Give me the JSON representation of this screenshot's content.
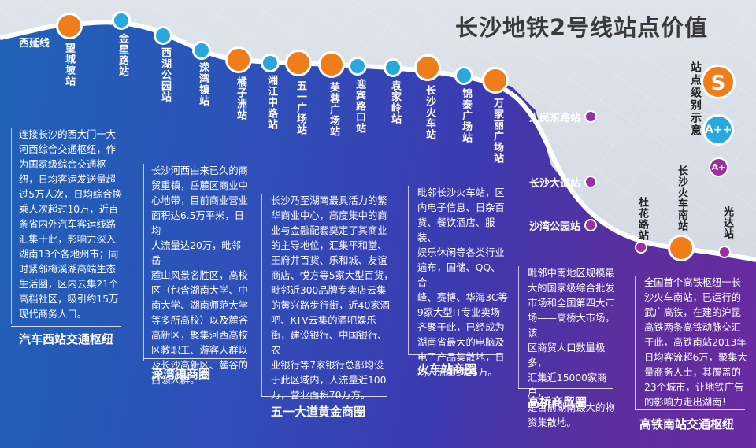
{
  "title": "长沙地铁2号线站点价值",
  "legend": {
    "title": "站点级别示意",
    "levels": [
      {
        "label": "S",
        "color": "#ef7d1a"
      },
      {
        "label": "A++",
        "color": "#29a8e0"
      },
      {
        "label": "A+",
        "color": "#9b2f9f"
      }
    ]
  },
  "stations": {
    "xiyanxian": "西延线",
    "wangchengpo": "望城坡站",
    "jinxinglu": "金星路站",
    "xihugongyuan": "西湖公园站",
    "rongwanzhen": "溁湾镇站",
    "juzizhou": "橘子洲站",
    "xiangjiangzhonglu": "湘江中路站",
    "wuyiguangchang": "五一广场站",
    "furongguangchang": "芙蓉广场站",
    "yingbinlukou": "迎宾路口站",
    "yuanjialing": "袁家岭站",
    "changshahuochezhan": "长沙火车站",
    "jintaiguangchang": "锦泰广场站",
    "wanjialiguangchang": "万家丽广场站",
    "renmindonglu": "人民东路站",
    "changshadadao": "长沙大道站",
    "shawangongyuan": "沙湾公园站",
    "duhualu": "杜花路站",
    "changshahuochenan": "长沙火车南站",
    "guangda": "光达站"
  },
  "panels": [
    {
      "text": "连接长沙的西大门一大\n河西综合交通枢纽，作\n为国家级综合交通枢\n纽，日均客运发送量超\n过5万人次，日均综合换\n乘人次超过10万，近百\n条省内外汽车客运线路\n汇集于此，影响力深入\n湖南13个各地州市；同\n时紧邻梅溪湖高端生态\n生活圈，区内云集21个\n高档社区，吸引约15万\n现代商务人口。",
      "hub": "汽车西站交通枢纽"
    },
    {
      "text": "长沙河西由来已久的商\n贸重镇，岳麓区商业中\n心地带，目前商业营业\n面积达6.5万平米，日均\n人流量达20万，毗邻岳\n麓山风景名胜区，高校\n区（包含湖南大学、中\n南大学、湖南师范大学\n等多所高校）以及麓谷\n高新区，聚集河西高校\n区教职工、游客人群以\n及长沙高新区、麓谷的\n白领人群。",
      "hub": "溁湾镇商圈"
    },
    {
      "text": "长沙乃至湖南最具活力的繁\n华商业中心，高度集中的商\n业与金融配套奠定了其商业\n的主导地位，汇集平和堂、\n王府井百货、乐和城、友谊\n商店、悦方等5家大型百货，\n毗邻近300品牌专卖店云集\n的黄兴路步行街，近40家酒\n吧、KTV云集的酒吧娱乐\n街，建设银行、中国银行、农\n业银行等7家银行总部均设\n于此区域内，人流量近100\n万，营业面积70万方。",
      "hub": "五一大道黄金商圈"
    },
    {
      "text": "毗邻长沙火车站，区\n内电子信息、日杂百\n货、餐饮酒店、服装、\n娱乐休闲等各类行业\n遍布，国储、QQ、合\n峰、赛博、华海3C等\n9家大型IT专业卖场\n齐聚于此，已经成为\n湖南省最大的电脑及\n电子产品集散地，日\n均人流量约25万。",
      "hub": "火车站商圈"
    },
    {
      "text": "毗邻中南地区规模最\n大的国家级综合批发\n市场和全国第四大市\n场——高桥大市场，该\n区商贸人口数量极多，\n汇集近15000家商户，\n是目前湖南最大的物\n资集散地。",
      "hub": "高桥商贸圈"
    },
    {
      "text": "全国首个高铁枢纽一长\n沙火车南站，已运行的\n武广高铁，在建的沪昆\n高铁两条高铁动脉交汇\n于此，高铁南站2013年\n日均客流超6万，聚集大\n量商务人士，其覆盖的\n23个城市，让地铁广告\n的影响力走出湖南！",
      "hub": "高铁南站交通枢纽"
    }
  ]
}
